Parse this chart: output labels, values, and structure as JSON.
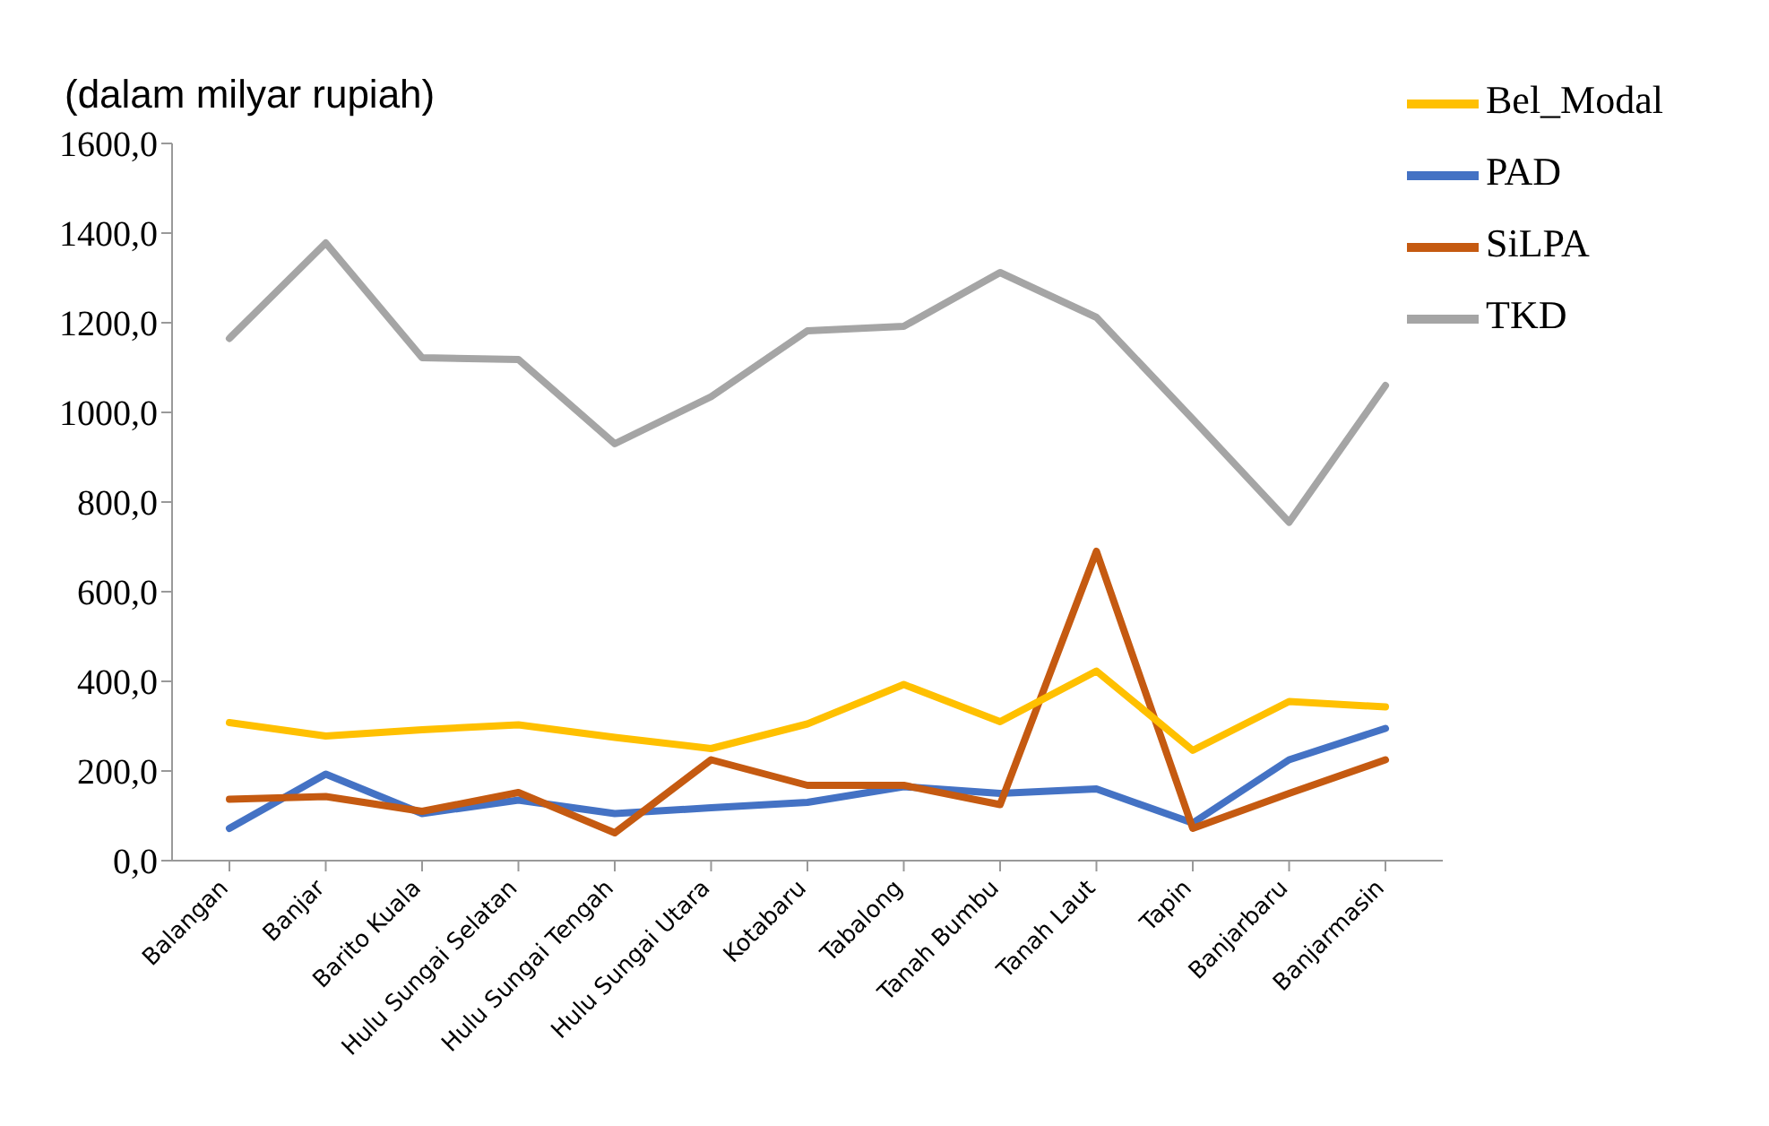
{
  "chart_data": {
    "type": "line",
    "ylabel": "(dalam milyar rupiah)",
    "categories": [
      "Balangan",
      "Banjar",
      "Barito Kuala",
      "Hulu Sungai Selatan",
      "Hulu Sungai Tengah",
      "Hulu Sungai Utara",
      "Kotabaru",
      "Tabalong",
      "Tanah Bumbu",
      "Tanah Laut",
      "Tapin",
      "Banjarbaru",
      "Banjarmasin"
    ],
    "series": [
      {
        "name": "PAD",
        "color": "#4472c4",
        "values": [
          72,
          193,
          105,
          135,
          105,
          118,
          130,
          165,
          150,
          160,
          84,
          225,
          295
        ]
      },
      {
        "name": "TKD",
        "color": "#a5a5a5",
        "values": [
          1165,
          1378,
          1122,
          1118,
          930,
          1035,
          1182,
          1192,
          1312,
          1212,
          985,
          755,
          1060
        ]
      },
      {
        "name": "SiLPA",
        "color": "#c55a11",
        "values": [
          137,
          143,
          110,
          152,
          62,
          225,
          168,
          168,
          125,
          690,
          72,
          150,
          225
        ]
      },
      {
        "name": "Bel_Modal",
        "color": "#ffc000",
        "values": [
          308,
          278,
          292,
          303,
          275,
          250,
          305,
          393,
          310,
          423,
          246,
          355,
          343
        ]
      }
    ],
    "ylim": [
      0,
      1600
    ],
    "yticks": [
      {
        "value": 0,
        "label": "0,0"
      },
      {
        "value": 200,
        "label": "200,0"
      },
      {
        "value": 400,
        "label": "400,0"
      },
      {
        "value": 600,
        "label": "600,0"
      },
      {
        "value": 800,
        "label": "800,0"
      },
      {
        "value": 1000,
        "label": "1000,0"
      },
      {
        "value": 1200,
        "label": "1200,0"
      },
      {
        "value": 1400,
        "label": "1400,0"
      },
      {
        "value": 1600,
        "label": "1600,0"
      }
    ],
    "grid": false,
    "legend": "top right",
    "marker": "none",
    "line_style": "solid"
  }
}
